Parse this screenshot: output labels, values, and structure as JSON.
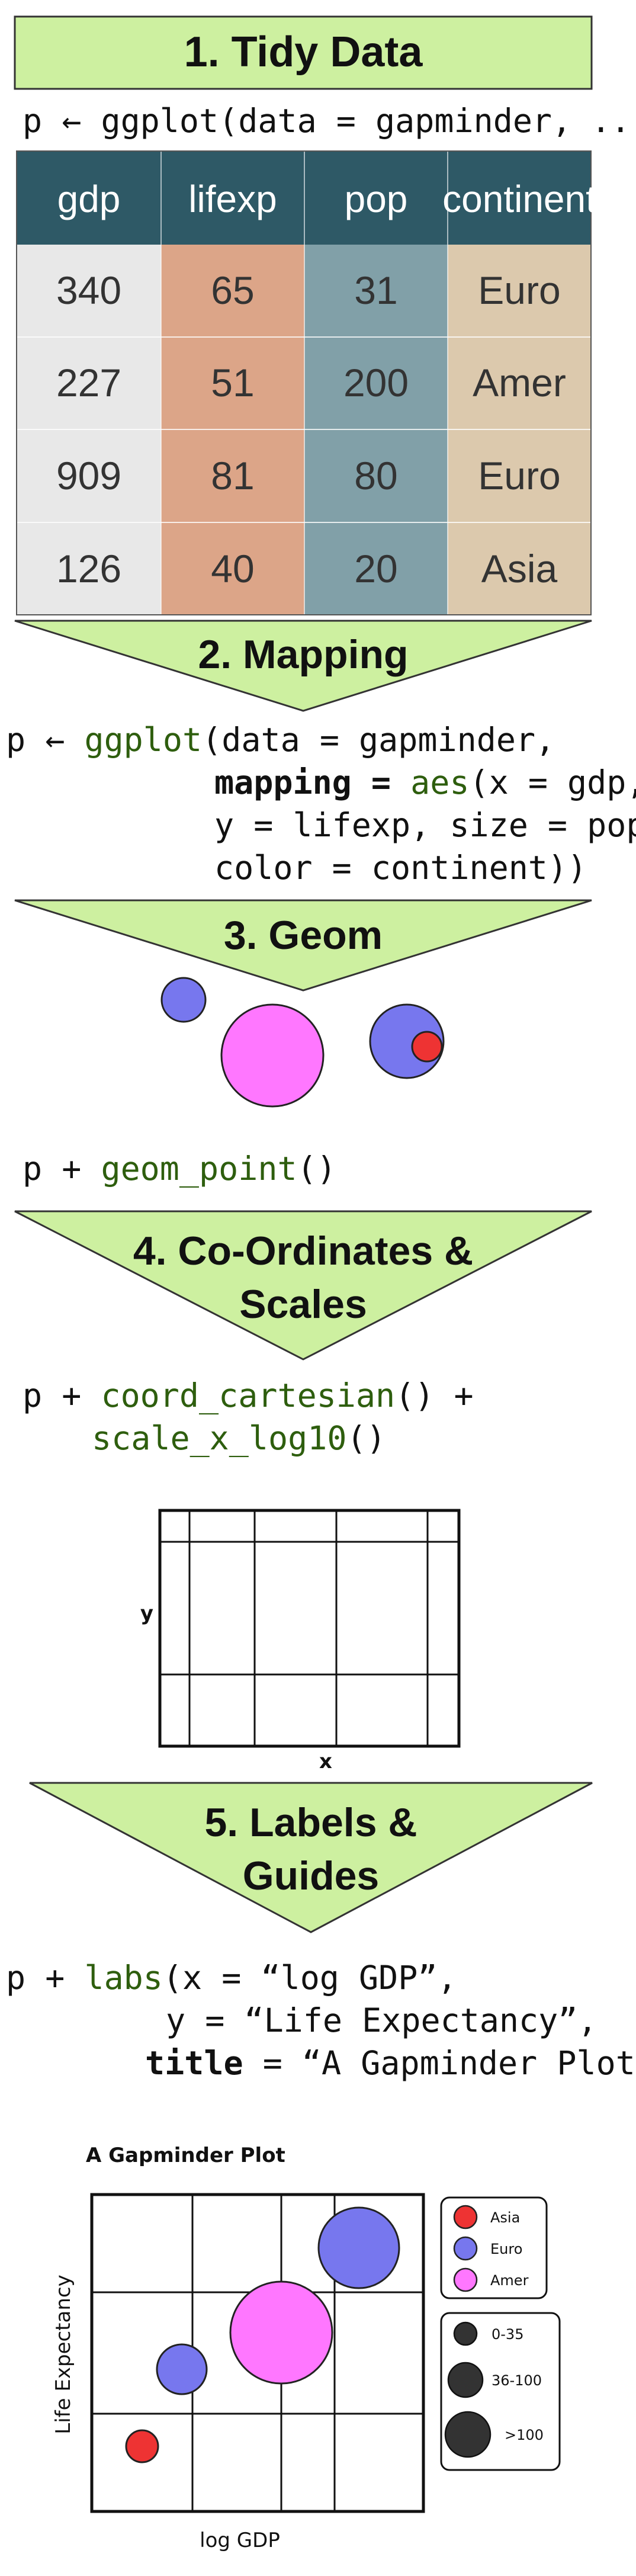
{
  "steps": [
    {
      "title": "1. Tidy Data"
    },
    {
      "title": "2. Mapping"
    },
    {
      "title": "3. Geom"
    },
    {
      "title_line1": "4. Co-Ordinates &",
      "title_line2": "Scales"
    },
    {
      "title_line1": "5. Labels &",
      "title_line2": "Guides"
    }
  ],
  "code": {
    "step1": "p ← ggplot(data = gapminder, ...",
    "step2": {
      "line1_pre": "p ← ",
      "line1_fn": "ggplot",
      "line1_post": "(data = gapminder,",
      "line2_pre": "mapping = ",
      "line2_fn": "aes",
      "line2_post": "(x = gdp,",
      "line3": "y = lifexp, size = pop,",
      "line4": "color = continent))"
    },
    "step3": {
      "pre": "p + ",
      "fn": "geom_point",
      "post": "()"
    },
    "step4": {
      "line1_pre": "p + ",
      "line1_fn": "coord_cartesian",
      "line1_post": "() +",
      "line2_fn": "scale_x_log10",
      "line2_post": "()"
    },
    "step5": {
      "line1_pre": "p + ",
      "line1_fn": "labs",
      "line1_post": "(x = “log GDP”,",
      "line2": "y = “Life Expectancy”,",
      "line3": "title = “A Gapminder Plot”)"
    }
  },
  "table": {
    "headers": [
      "gdp",
      "lifexp",
      "pop",
      "continent"
    ],
    "rows": [
      [
        "340",
        "65",
        "31",
        "Euro"
      ],
      [
        "227",
        "51",
        "200",
        "Amer"
      ],
      [
        "909",
        "81",
        "80",
        "Euro"
      ],
      [
        "126",
        "40",
        "20",
        "Asia"
      ]
    ],
    "colors": {
      "header": "#2e5966",
      "col_gdp": "#e8e8e8",
      "col_lifexp": "#dca588",
      "col_pop": "#81a0a8",
      "col_continent": "#dcc9ad"
    }
  },
  "coord": {
    "xlabel": "x",
    "ylabel": "y"
  },
  "final_plot": {
    "title": "A Gapminder Plot",
    "xlabel": "log GDP",
    "ylabel": "Life Expectancy",
    "legend_color": [
      {
        "label": "Asia",
        "color": "#ee3333"
      },
      {
        "label": "Euro",
        "color": "#7777ee"
      },
      {
        "label": "Amer",
        "color": "#ff77ff"
      }
    ],
    "legend_size": [
      {
        "label": "0-35"
      },
      {
        "label": "36-100"
      },
      {
        "label": ">100"
      }
    ]
  },
  "colors": {
    "banner_fill": "#cdf0a0",
    "banner_stroke": "#333333",
    "code_function": "#2e5e0e",
    "asia": "#ee3333",
    "euro": "#7777ee",
    "amer": "#ff77ff",
    "size_legend": "#333333"
  }
}
